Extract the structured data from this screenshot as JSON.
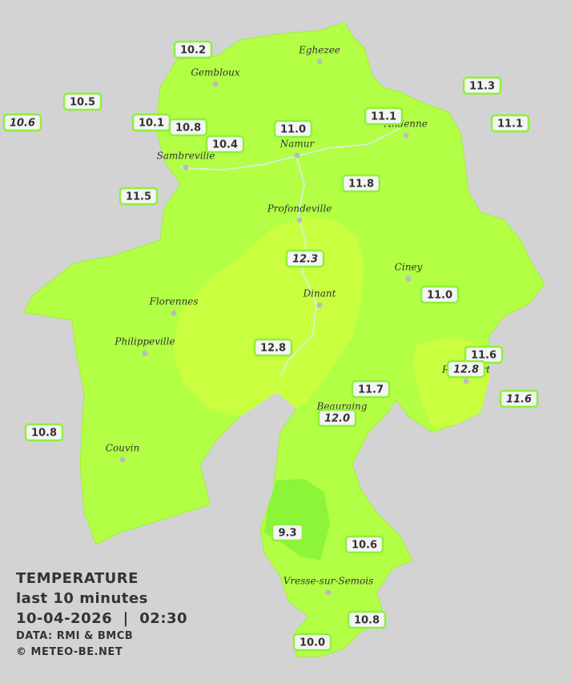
{
  "towns": [
    "Eghezee",
    "Gembloux",
    "Andenne",
    "Namur",
    "Sambreville",
    "Profondeville",
    "Ciney",
    "Dinant",
    "Florennes",
    "Philippeville",
    "Rochefort",
    "Beauraing",
    "Couvin",
    "Vresse-sur-Semois"
  ],
  "stations": [
    {
      "label": "10.2",
      "italic": false
    },
    {
      "label": "10.5",
      "italic": false
    },
    {
      "label": "10.6",
      "italic": true
    },
    {
      "label": "10.1",
      "italic": false
    },
    {
      "label": "10.8",
      "italic": false
    },
    {
      "label": "10.4",
      "italic": false
    },
    {
      "label": "11.0",
      "italic": false
    },
    {
      "label": "11.1",
      "italic": false
    },
    {
      "label": "11.3",
      "italic": false
    },
    {
      "label": "11.1",
      "italic": false
    },
    {
      "label": "11.5",
      "italic": false
    },
    {
      "label": "11.8",
      "italic": false
    },
    {
      "label": "12.3",
      "italic": true
    },
    {
      "label": "11.0",
      "italic": false
    },
    {
      "label": "12.8",
      "italic": false
    },
    {
      "label": "11.6",
      "italic": false
    },
    {
      "label": "12.8",
      "italic": true
    },
    {
      "label": "11.7",
      "italic": false
    },
    {
      "label": "12.0",
      "italic": true
    },
    {
      "label": "11.6",
      "italic": true
    },
    {
      "label": "10.8",
      "italic": false
    },
    {
      "label": "9.3",
      "italic": false
    },
    {
      "label": "10.6",
      "italic": false
    },
    {
      "label": "10.8",
      "italic": false
    },
    {
      "label": "10.0",
      "italic": false
    }
  ],
  "legend": {
    "title": "TEMPERATURE",
    "subtitle": "last 10 minutes",
    "datetime": "10-04-2026  |  02:30",
    "source": "DATA: RMI & BMCB",
    "credit": "© METEO-BE.NET"
  }
}
